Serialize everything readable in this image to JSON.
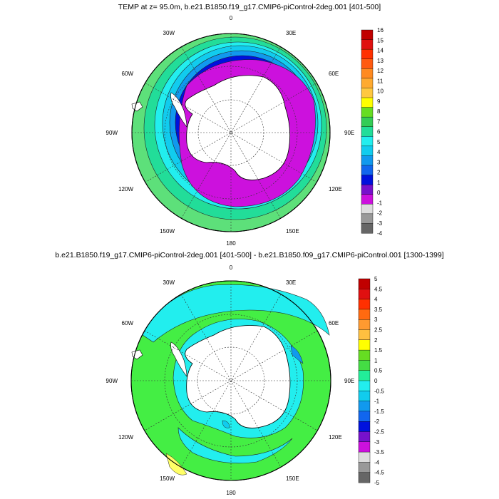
{
  "panels": [
    {
      "title": "TEMP at z=  95.0m, b.e21.B1850.f19_g17.CMIP6-piControl-2deg.001 [401-500]",
      "meridian_labels": [
        "0",
        "30E",
        "60E",
        "90E",
        "120E",
        "150E",
        "180",
        "150W",
        "120W",
        "90W",
        "60W",
        "30W"
      ],
      "colorbar": {
        "labels": [
          "16",
          "15",
          "14",
          "13",
          "12",
          "11",
          "10",
          "9",
          "8",
          "7",
          "6",
          "5",
          "4",
          "3",
          "2",
          "1",
          "0",
          "-1",
          "-2",
          "-3",
          "-4"
        ],
        "colors": [
          "#c00000",
          "#e01010",
          "#ff3000",
          "#ff5a10",
          "#ff8a20",
          "#ffaa30",
          "#ffc840",
          "#ffff00",
          "#66dd22",
          "#33cc55",
          "#22dd99",
          "#22eeee",
          "#11ccee",
          "#1199ee",
          "#1166ee",
          "#0011dd",
          "#7711cc",
          "#cc11dd",
          "#dddddd",
          "#999999",
          "#666666"
        ]
      }
    },
    {
      "title": "b.e21.B1850.f19_g17.CMIP6-piControl-2deg.001 [401-500] - b.e21.B1850.f09_g17.CMIP6-piControl.001 [1300-1399]",
      "meridian_labels": [
        "0",
        "30E",
        "60E",
        "90E",
        "120E",
        "150E",
        "180",
        "150W",
        "120W",
        "90W",
        "60W",
        "30W"
      ],
      "colorbar": {
        "labels": [
          "5",
          "4.5",
          "4",
          "3.5",
          "3",
          "2.5",
          "2",
          "1.5",
          "1",
          "0.5",
          "0",
          "-0.5",
          "-1",
          "-1.5",
          "-2",
          "-2.5",
          "-3",
          "-3.5",
          "-4",
          "-4.5",
          "-5"
        ],
        "colors": [
          "#c00000",
          "#e01010",
          "#ff3000",
          "#ff6a10",
          "#ff9a30",
          "#ffc040",
          "#ffff00",
          "#66dd22",
          "#44dd44",
          "#22ee99",
          "#22eeee",
          "#11ccee",
          "#1199ee",
          "#1166ee",
          "#0011dd",
          "#7711cc",
          "#cc11dd",
          "#dddddd",
          "#999999",
          "#666666"
        ]
      }
    }
  ]
}
